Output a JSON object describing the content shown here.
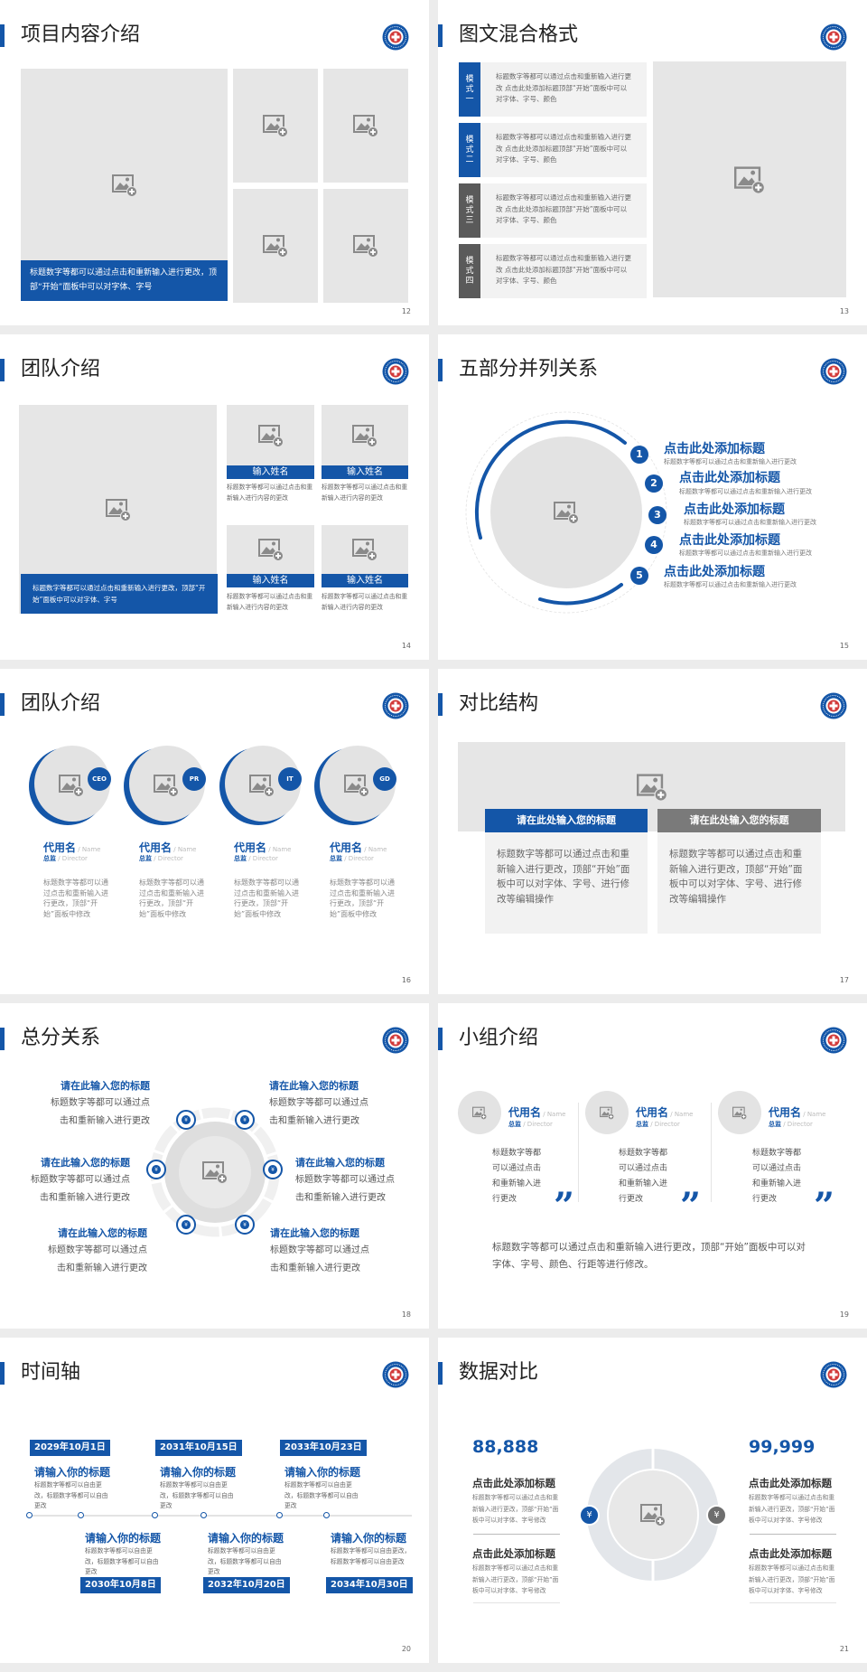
{
  "colors": {
    "accent": "#1456a8",
    "gray_label": "#5a5a5a",
    "placeholder": "#e6e6e6"
  },
  "icons": {
    "image_placeholder": "image-add-icon",
    "logo": "emblem-logo",
    "money_bag": "money-bag-icon"
  },
  "s12": {
    "title": "项目内容介绍",
    "caption": "标题数字等都可以通过点击和重新输入进行更改，顶部“开始”面板中可以对字体、字号",
    "page": "12"
  },
  "s13": {
    "title": "图文混合格式",
    "modes": [
      {
        "label": "模式一",
        "text": "标题数字等都可以通过点击和重新输入进行更改 点击此处添加标题顶部“开始”面板中可以对字体、字号、颜色"
      },
      {
        "label": "模式二",
        "text": "标题数字等都可以通过点击和重新输入进行更改 点击此处添加标题顶部“开始”面板中可以对字体、字号、颜色"
      },
      {
        "label": "模式三",
        "text": "标题数字等都可以通过点击和重新输入进行更改 点击此处添加标题顶部“开始”面板中可以对字体、字号、颜色"
      },
      {
        "label": "模式四",
        "text": "标题数字等都可以通过点击和重新输入进行更改 点击此处添加标题顶部“开始”面板中可以对字体、字号、颜色"
      }
    ],
    "page": "13"
  },
  "s14": {
    "title": "团队介绍",
    "caption": "标题数字等都可以通过点击和重新输入进行更改，顶部“开始”面板中可以对字体、字号",
    "members": [
      {
        "name": "输入姓名",
        "desc": "标题数字等都可以通过点击和重新输入进行内容的更改"
      },
      {
        "name": "输入姓名",
        "desc": "标题数字等都可以通过点击和重新输入进行内容的更改"
      },
      {
        "name": "输入姓名",
        "desc": "标题数字等都可以通过点击和重新输入进行内容的更改"
      },
      {
        "name": "输入姓名",
        "desc": "标题数字等都可以通过点击和重新输入进行内容的更改"
      }
    ],
    "page": "14"
  },
  "s15": {
    "title": "五部分并列关系",
    "items": [
      {
        "num": "1",
        "title": "点击此处添加标题",
        "desc": "标题数字等都可以通过点击和重新输入进行更改"
      },
      {
        "num": "2",
        "title": "点击此处添加标题",
        "desc": "标题数字等都可以通过点击和重新输入进行更改"
      },
      {
        "num": "3",
        "title": "点击此处添加标题",
        "desc": "标题数字等都可以通过点击和重新输入进行更改"
      },
      {
        "num": "4",
        "title": "点击此处添加标题",
        "desc": "标题数字等都可以通过点击和重新输入进行更改"
      },
      {
        "num": "5",
        "title": "点击此处添加标题",
        "desc": "标题数字等都可以通过点击和重新输入进行更改"
      }
    ],
    "page": "15"
  },
  "s16": {
    "title": "团队介绍",
    "members": [
      {
        "badge": "CEO",
        "name": "代用名",
        "name_en": " / Name",
        "role": "总监",
        "role_en": " /  Director",
        "desc": "标题数字等都可以通过点击和重新输入进行更改，顶部“开始”面板中修改"
      },
      {
        "badge": "PR",
        "name": "代用名",
        "name_en": " / Name",
        "role": "总监",
        "role_en": " /  Director",
        "desc": "标题数字等都可以通过点击和重新输入进行更改，顶部“开始”面板中修改"
      },
      {
        "badge": "IT",
        "name": "代用名",
        "name_en": " / Name",
        "role": "总监",
        "role_en": " /  Director",
        "desc": "标题数字等都可以通过点击和重新输入进行更改，顶部“开始”面板中修改"
      },
      {
        "badge": "GD",
        "name": "代用名",
        "name_en": " / Name",
        "role": "总监",
        "role_en": " /  Director",
        "desc": "标题数字等都可以通过点击和重新输入进行更改，顶部“开始”面板中修改"
      }
    ],
    "page": "16"
  },
  "s17": {
    "title": "对比结构",
    "columns": [
      {
        "header": "请在此处输入您的标题",
        "text": "标题数字等都可以通过点击和重新输入进行更改，顶部“开始”面板中可以对字体、字号、进行修改等编辑操作"
      },
      {
        "header": "请在此处输入您的标题",
        "text": "标题数字等都可以通过点击和重新输入进行更改，顶部“开始”面板中可以对字体、字号、进行修改等编辑操作"
      }
    ],
    "page": "17"
  },
  "s18": {
    "title": "总分关系",
    "items": [
      {
        "title": "请在此输入您的标题",
        "line1": "标题数字等都可以通过点",
        "line2": "击和重新输入进行更改"
      },
      {
        "title": "请在此输入您的标题",
        "line1": "标题数字等都可以通过点",
        "line2": "击和重新输入进行更改"
      },
      {
        "title": "请在此输入您的标题",
        "line1": "标题数字等都可以通过点",
        "line2": "击和重新输入进行更改"
      },
      {
        "title": "请在此输入您的标题",
        "line1": "标题数字等都可以通过点",
        "line2": "击和重新输入进行更改"
      },
      {
        "title": "请在此输入您的标题",
        "line1": "标题数字等都可以通过点",
        "line2": "击和重新输入进行更改"
      },
      {
        "title": "请在此输入您的标题",
        "line1": "标题数字等都可以通过点",
        "line2": "击和重新输入进行更改"
      }
    ],
    "page": "18"
  },
  "s19": {
    "title": "小组介绍",
    "members": [
      {
        "name": "代用名",
        "name_en": " / Name",
        "role": "总监",
        "role_en": " /  Director",
        "desc": "标题数字等都可以通过点击和重新输入进行更改",
        "quote": "”"
      },
      {
        "name": "代用名",
        "name_en": " / Name",
        "role": "总监",
        "role_en": " /  Director",
        "desc": "标题数字等都可以通过点击和重新输入进行更改",
        "quote": "”"
      },
      {
        "name": "代用名",
        "name_en": " / Name",
        "role": "总监",
        "role_en": " /  Director",
        "desc": "标题数字等都可以通过点击和重新输入进行更改",
        "quote": "”"
      }
    ],
    "summary": "标题数字等都可以通过点击和重新输入进行更改，顶部“开始”面板中可以对字体、字号、颜色、行距等进行修改。",
    "page": "19"
  },
  "s20": {
    "title": "时间轴",
    "events": [
      {
        "date": "2029年10月1日",
        "title": "请输入你的标题",
        "desc": "标题数字等都可以自由更改，标题数字等都可以自由更改"
      },
      {
        "date": "2030年10月8日",
        "title": "请输入你的标题",
        "desc": "标题数字等都可以自由更改，标题数字等都可以自由更改"
      },
      {
        "date": "2031年10月15日",
        "title": "请输入你的标题",
        "desc": "标题数字等都可以自由更改，标题数字等都可以自由更改"
      },
      {
        "date": "2032年10月20日",
        "title": "请输入你的标题",
        "desc": "标题数字等都可以自由更改，标题数字等都可以自由更改"
      },
      {
        "date": "2033年10月23日",
        "title": "请输入你的标题",
        "desc": "标题数字等都可以自由更改，标题数字等都可以自由更改"
      },
      {
        "date": "2034年10月30日",
        "title": "请输入你的标题",
        "desc": "标题数字等都可以自由更改，标题数字等都可以自由更改"
      }
    ],
    "page": "20"
  },
  "s21": {
    "title": "数据对比",
    "left": {
      "value": "88,888",
      "blocks": [
        {
          "title": "点击此处添加标题",
          "desc": "标题数字等都可以通过点击和重新输入进行更改，顶部“开始”面板中可以对字体、字号修改"
        },
        {
          "title": "点击此处添加标题",
          "desc": "标题数字等都可以通过点击和重新输入进行更改，顶部“开始”面板中可以对字体、字号修改"
        }
      ]
    },
    "right": {
      "value": "99,999",
      "blocks": [
        {
          "title": "点击此处添加标题",
          "desc": "标题数字等都可以通过点击和重新输入进行更改，顶部“开始”面板中可以对字体、字号修改"
        },
        {
          "title": "点击此处添加标题",
          "desc": "标题数字等都可以通过点击和重新输入进行更改，顶部“开始”面板中可以对字体、字号修改"
        }
      ]
    },
    "page": "21"
  }
}
